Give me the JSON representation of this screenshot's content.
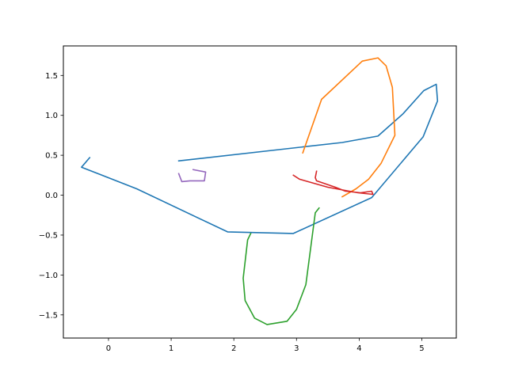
{
  "chart_data": {
    "type": "line",
    "title": "",
    "xlabel": "",
    "ylabel": "",
    "xlim": [
      -0.72,
      5.55
    ],
    "ylim": [
      -1.79,
      1.87
    ],
    "grid": false,
    "x_ticks": [
      0,
      1,
      2,
      3,
      4,
      5
    ],
    "y_ticks": [
      -1.5,
      -1.0,
      -0.5,
      0.0,
      0.5,
      1.0,
      1.5
    ],
    "x_tick_labels": [
      "0",
      "1",
      "2",
      "3",
      "4",
      "5"
    ],
    "y_tick_labels": [
      "−1.5",
      "−1.0",
      "−0.5",
      "0.0",
      "0.5",
      "1.0",
      "1.5"
    ],
    "series": [
      {
        "color": "#1f77b4",
        "x": [
          -0.3,
          -0.43,
          0.45,
          1.9,
          2.95,
          4.2,
          5.02,
          5.25,
          5.23,
          5.03,
          4.7,
          4.3,
          3.73,
          1.12
        ],
        "y": [
          0.47,
          0.35,
          0.08,
          -0.46,
          -0.48,
          -0.03,
          0.73,
          1.18,
          1.39,
          1.31,
          1.02,
          0.74,
          0.66,
          0.43
        ]
      },
      {
        "color": "#ff7f0e",
        "x": [
          3.1,
          3.4,
          4.05,
          4.3,
          4.43,
          4.53,
          4.57,
          4.35,
          4.15,
          3.95,
          3.73
        ],
        "y": [
          0.53,
          1.2,
          1.68,
          1.72,
          1.62,
          1.35,
          0.75,
          0.4,
          0.2,
          0.08,
          -0.02
        ]
      },
      {
        "color": "#2ca02c",
        "x": [
          3.36,
          3.3,
          3.15,
          3.0,
          2.85,
          2.53,
          2.33,
          2.18,
          2.15,
          2.22,
          2.27
        ],
        "y": [
          -0.16,
          -0.22,
          -1.12,
          -1.43,
          -1.58,
          -1.62,
          -1.54,
          -1.32,
          -1.04,
          -0.56,
          -0.48
        ]
      },
      {
        "color": "#d62728",
        "x": [
          3.32,
          3.3,
          3.32,
          3.62,
          3.78,
          4.02,
          4.2,
          4.22,
          3.98,
          3.5,
          3.05,
          2.95
        ],
        "y": [
          0.3,
          0.22,
          0.18,
          0.1,
          0.05,
          0.03,
          0.05,
          0.01,
          0.03,
          0.1,
          0.2,
          0.25
        ]
      },
      {
        "color": "#9467bd",
        "x": [
          1.35,
          1.55,
          1.53,
          1.42,
          1.3,
          1.17,
          1.12
        ],
        "y": [
          0.32,
          0.29,
          0.18,
          0.18,
          0.18,
          0.17,
          0.27
        ]
      }
    ]
  }
}
